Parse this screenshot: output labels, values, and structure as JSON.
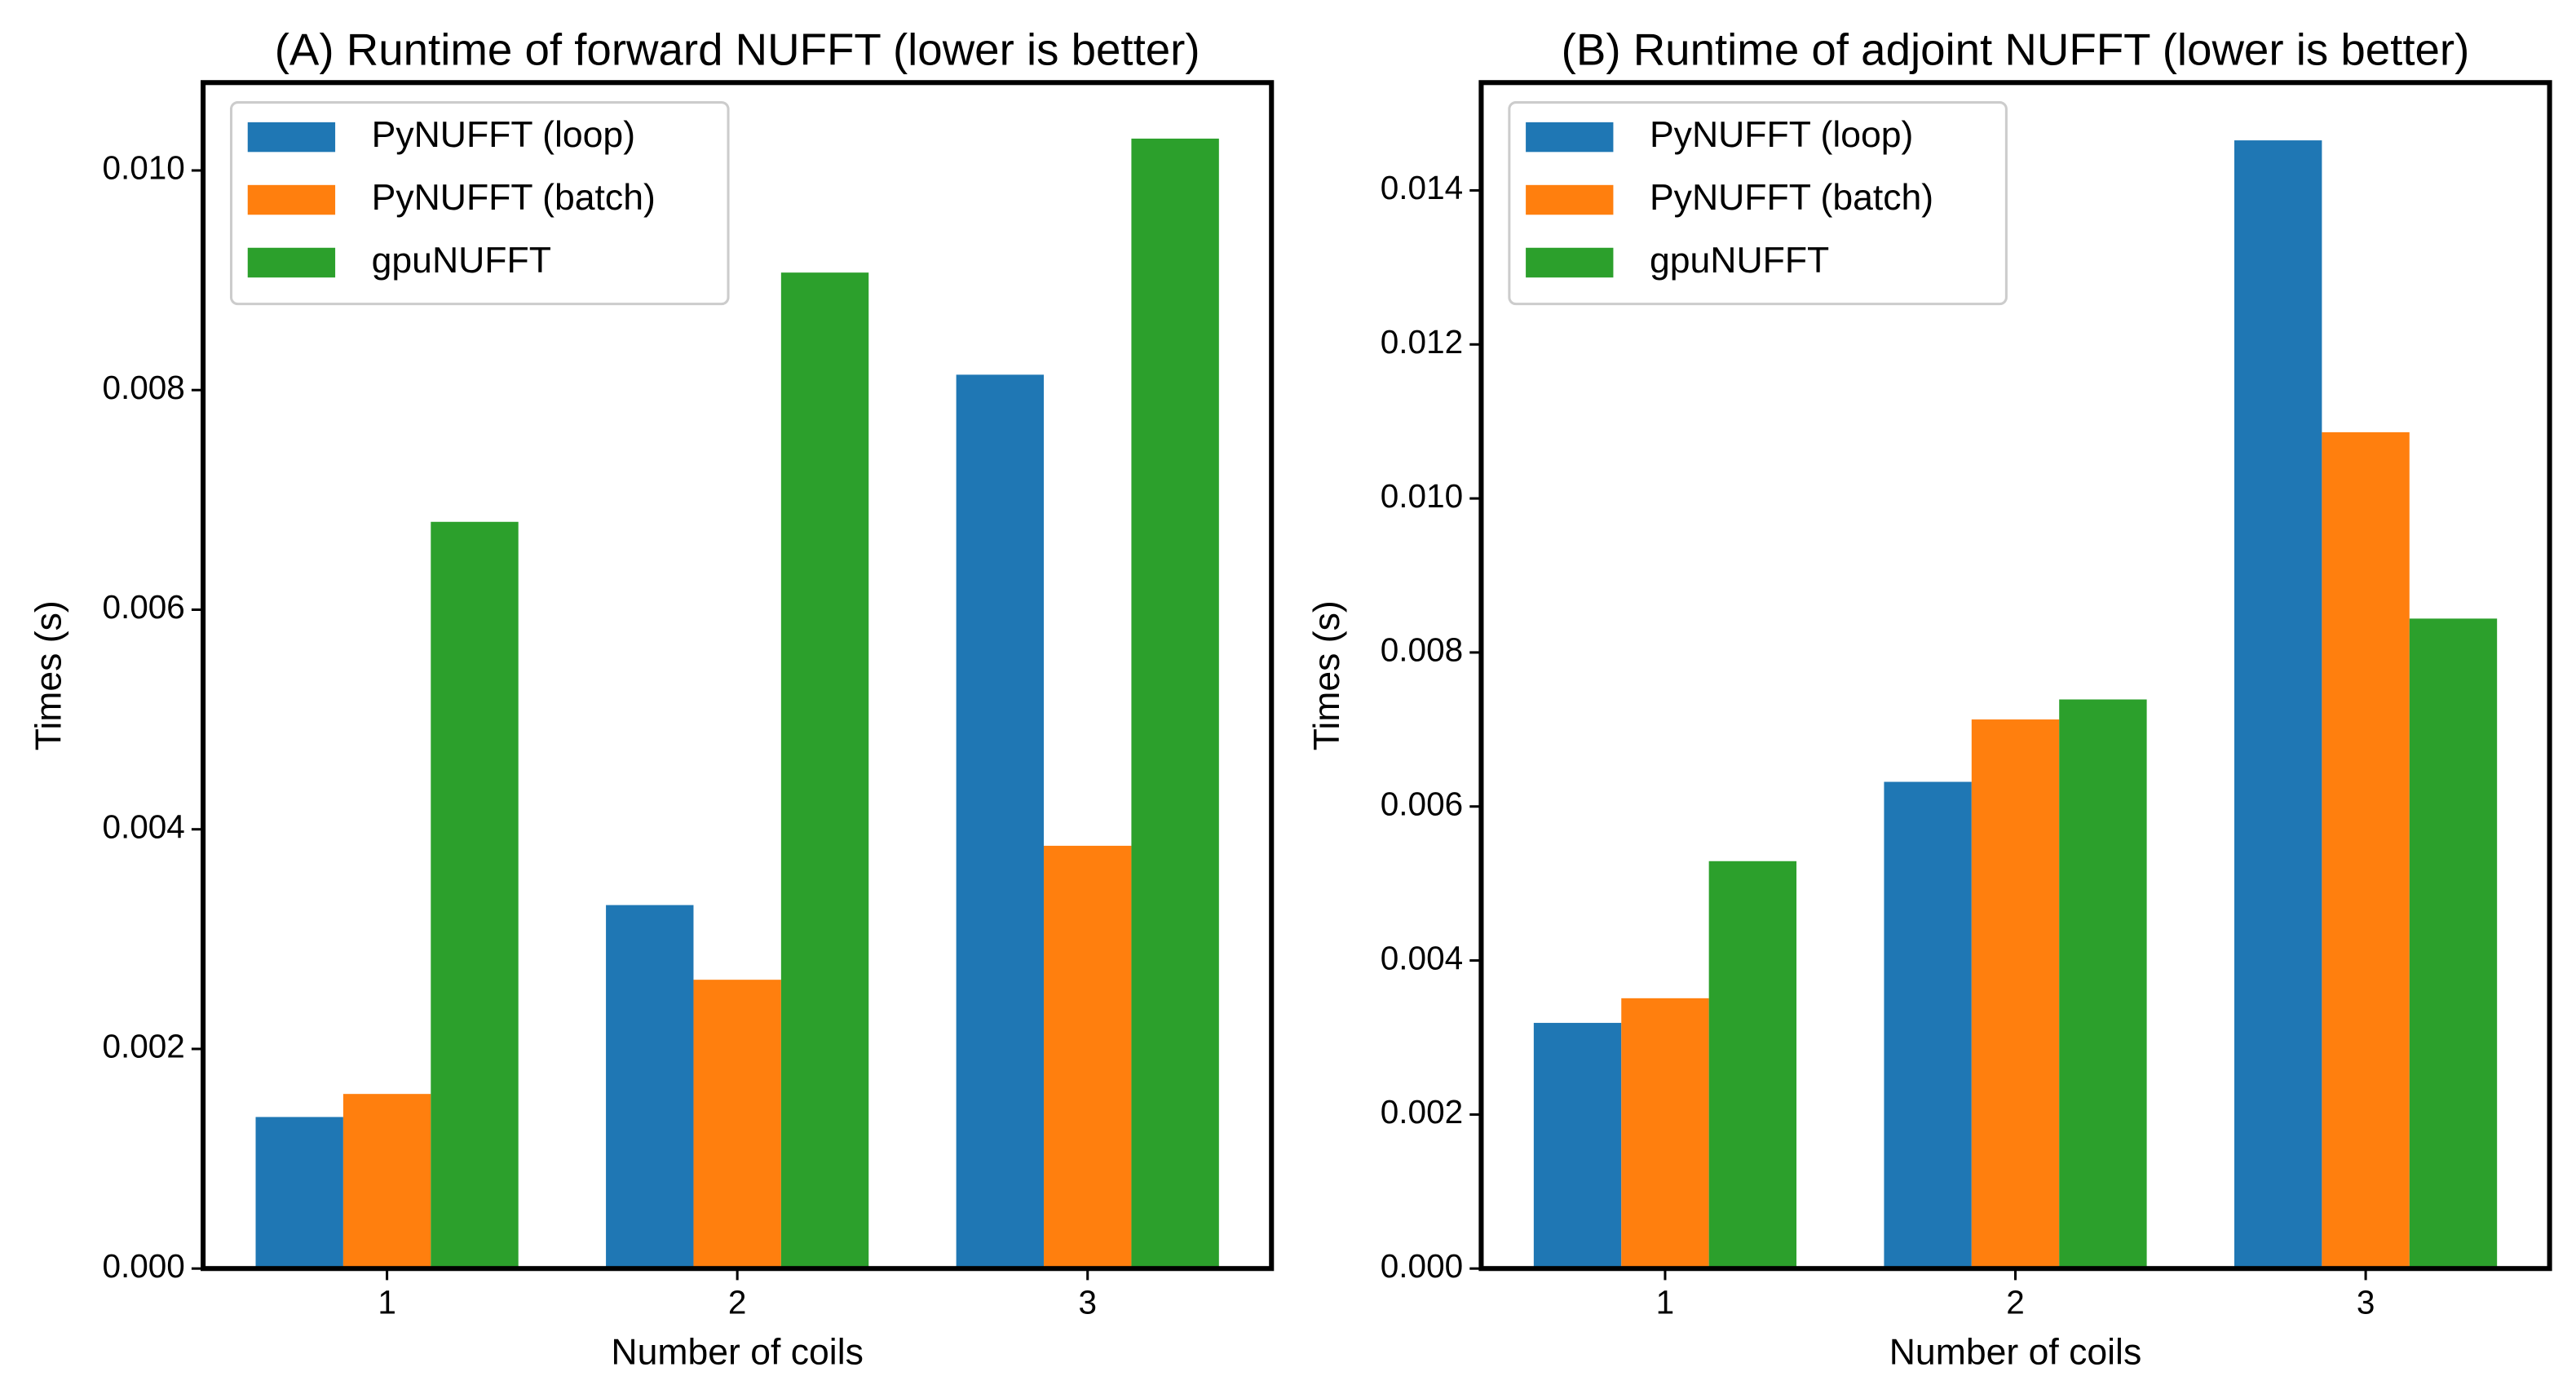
{
  "chart_data": [
    {
      "type": "bar",
      "title": "(A) Runtime of forward NUFFT (lower is better)",
      "xlabel": "Number of coils",
      "ylabel": "Times (s)",
      "categories": [
        "1",
        "2",
        "3"
      ],
      "series": [
        {
          "name": "PyNUFFT (loop)",
          "color": "#1f77b4",
          "values": [
            0.00138,
            0.00331,
            0.00814
          ]
        },
        {
          "name": "PyNUFFT (batch)",
          "color": "#ff7f0e",
          "values": [
            0.00159,
            0.00263,
            0.00385
          ]
        },
        {
          "name": "gpuNUFFT",
          "color": "#2ca02c",
          "values": [
            0.0068,
            0.00907,
            0.01029
          ]
        }
      ],
      "ylim": [
        0,
        0.0108
      ],
      "yticks": [
        {
          "value": 0,
          "label": "0.000"
        },
        0.002,
        0.004,
        0.006,
        0.008,
        {
          "value": 0.01,
          "label": "0.010"
        }
      ],
      "legend": "upper left"
    },
    {
      "type": "bar",
      "title": "(B) Runtime of adjoint NUFFT (lower is better)",
      "xlabel": "Number of coils",
      "ylabel": "Times (s)",
      "categories": [
        "1",
        "2",
        "3"
      ],
      "series": [
        {
          "name": "PyNUFFT (loop)",
          "color": "#1f77b4",
          "values": [
            0.00319,
            0.00632,
            0.01465
          ]
        },
        {
          "name": "PyNUFFT (batch)",
          "color": "#ff7f0e",
          "values": [
            0.00351,
            0.00713,
            0.01086
          ]
        },
        {
          "name": "gpuNUFFT",
          "color": "#2ca02c",
          "values": [
            0.00529,
            0.00739,
            0.00844
          ]
        }
      ],
      "ylim": [
        0,
        0.0154
      ],
      "yticks": [
        {
          "value": 0,
          "label": "0.000"
        },
        0.002,
        0.004,
        0.006,
        0.008,
        {
          "value": 0.01,
          "label": "0.010"
        },
        0.012,
        0.014
      ],
      "legend": "upper left"
    }
  ]
}
